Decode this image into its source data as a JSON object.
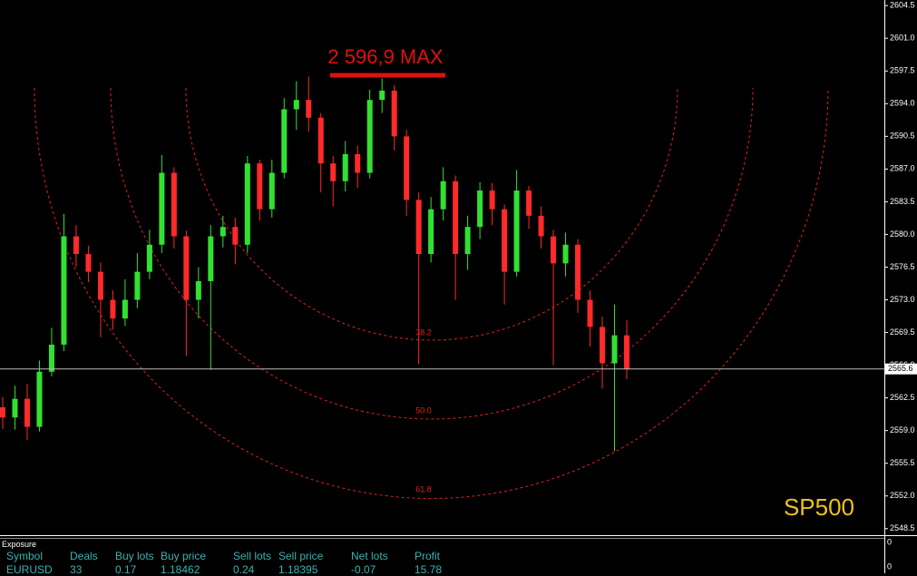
{
  "chart_data": {
    "type": "candlestick",
    "annotation": "2 596,9 MAX",
    "symbol": "SP500",
    "fib_labels": [
      "38.2",
      "50.0",
      "61.8"
    ],
    "up_color": "#32e032",
    "down_color": "#ff2a2a",
    "open": [
      2561.5,
      2560.4,
      2562.4,
      2559.4,
      2565.3,
      2568.2,
      2579.8,
      2577.9,
      2576.0,
      2573.0,
      2571.0,
      2573.0,
      2576.0,
      2578.9,
      2586.6,
      2579.8,
      2573.0,
      2575.0,
      2579.8,
      2580.8,
      2578.9,
      2587.6,
      2582.7,
      2586.6,
      2593.4,
      2594.4,
      2592.5,
      2587.6,
      2585.7,
      2588.6,
      2586.6,
      2594.4,
      2595.4,
      2590.5,
      2583.7,
      2577.9,
      2582.7,
      2585.7,
      2577.9,
      2580.8,
      2584.7,
      2582.7,
      2576.0,
      2584.7,
      2582.0,
      2579.8,
      2576.9,
      2578.9,
      2573.0,
      2570.1,
      2566.2,
      2569.2
    ],
    "high": [
      2562.6,
      2563.8,
      2564.0,
      2566.5,
      2570.0,
      2582.2,
      2581.0,
      2578.8,
      2577.0,
      2574.0,
      2575.2,
      2578.0,
      2580.5,
      2588.5,
      2587.2,
      2580.4,
      2576.5,
      2581.0,
      2582.0,
      2581.8,
      2588.4,
      2588.0,
      2588.0,
      2594.6,
      2596.4,
      2596.9,
      2593.0,
      2588.4,
      2590.0,
      2589.5,
      2595.5,
      2596.7,
      2596.0,
      2591.2,
      2584.5,
      2584.0,
      2587.2,
      2586.3,
      2582.0,
      2585.6,
      2585.5,
      2583.2,
      2586.9,
      2585.2,
      2583.0,
      2580.5,
      2580.2,
      2579.5,
      2574.0,
      2571.2,
      2572.5,
      2570.8
    ],
    "low": [
      2559.2,
      2559.1,
      2558.0,
      2558.9,
      2564.8,
      2567.5,
      2576.5,
      2574.9,
      2569.0,
      2569.8,
      2570.2,
      2572.1,
      2575.2,
      2578.0,
      2578.5,
      2567.0,
      2571.0,
      2565.5,
      2578.6,
      2576.8,
      2578.0,
      2581.5,
      2581.8,
      2586.0,
      2591.2,
      2591.0,
      2584.5,
      2583.0,
      2584.6,
      2585.0,
      2586.0,
      2593.0,
      2589.0,
      2582.0,
      2566.1,
      2577.0,
      2581.5,
      2573.0,
      2576.2,
      2579.5,
      2581.0,
      2572.5,
      2575.5,
      2580.6,
      2578.5,
      2566.0,
      2575.5,
      2571.6,
      2568.0,
      2563.5,
      2556.8,
      2564.5
    ],
    "close": [
      2560.4,
      2562.4,
      2559.4,
      2565.3,
      2568.2,
      2579.8,
      2577.9,
      2576.0,
      2573.0,
      2571.0,
      2573.0,
      2576.0,
      2578.9,
      2586.6,
      2579.8,
      2573.0,
      2575.0,
      2579.8,
      2580.8,
      2578.9,
      2587.6,
      2582.7,
      2586.6,
      2593.4,
      2594.4,
      2592.5,
      2587.6,
      2585.7,
      2588.6,
      2586.6,
      2594.4,
      2595.4,
      2590.5,
      2583.7,
      2577.9,
      2582.7,
      2585.7,
      2577.9,
      2580.8,
      2584.7,
      2582.7,
      2576.0,
      2584.7,
      2582.0,
      2579.8,
      2576.9,
      2578.9,
      2573.0,
      2570.1,
      2566.2,
      2569.2,
      2565.6
    ],
    "last_price": 2565.6,
    "ylim": [
      2547.8,
      2605.1
    ],
    "yticks": [
      2548.5,
      {
        "value": 2552,
        "label": "2552.0"
      },
      2555.5,
      {
        "value": 2559,
        "label": "2559.0"
      },
      2562.5,
      {
        "value": 2566,
        "label": "2566.0"
      },
      2569.5,
      {
        "value": 2573,
        "label": "2573.0"
      },
      2576.5,
      {
        "value": 2580,
        "label": "2580.0"
      },
      2583.5,
      {
        "value": 2587,
        "label": "2587.0"
      },
      2590.5,
      {
        "value": 2594,
        "label": "2594.0"
      },
      2597.5,
      {
        "value": 2601,
        "label": "2601.0"
      },
      2604.5
    ]
  },
  "exposure": {
    "title": "Exposure",
    "columns": [
      "Symbol",
      "Deals",
      "Buy lots",
      "Buy price",
      "Sell lots",
      "Sell price",
      "Net lots",
      "Profit"
    ],
    "rows": [
      [
        "EURUSD",
        "33",
        "0.17",
        "1.18462",
        "0.24",
        "1.18395",
        "-0.07",
        "15.78"
      ]
    ],
    "axis_labels": [
      "0",
      "0"
    ]
  }
}
